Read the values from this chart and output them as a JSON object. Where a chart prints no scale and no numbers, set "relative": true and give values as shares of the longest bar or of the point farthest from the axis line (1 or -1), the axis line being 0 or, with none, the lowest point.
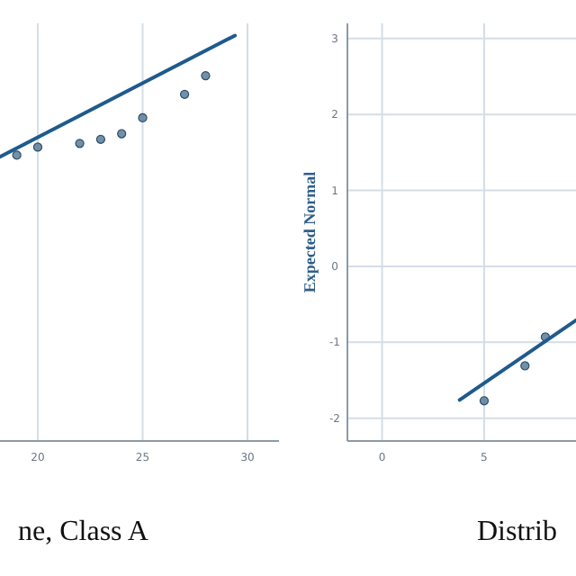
{
  "chart_data": [
    {
      "type": "scatter",
      "relative": true,
      "xlim": [
        18.2,
        31.5
      ],
      "xticks": [
        20,
        25,
        30
      ],
      "tick_labels": "x",
      "grid": "x",
      "annotations": [
        "ne, Class A"
      ],
      "series": [
        {
          "marker": "circle",
          "color": "#5b7d9a",
          "x": [
            19,
            20,
            22,
            23,
            24,
            25,
            27,
            28
          ],
          "values": [
            0.705,
            0.725,
            0.734,
            0.744,
            0.758,
            0.797,
            0.855,
            0.901
          ]
        },
        {
          "type": "line",
          "marker": "none",
          "color": "#1f5a8c",
          "x": [
            18.2,
            29.4
          ],
          "values": [
            0.701,
            1.0
          ]
        }
      ]
    },
    {
      "type": "scatter",
      "ylabel": "Expected Normal",
      "xlim": [
        -1.7,
        9.5
      ],
      "ylim": [
        -2.3,
        3.2
      ],
      "xticks": [
        0,
        5
      ],
      "yticks": [
        -2,
        -1,
        0,
        1,
        2,
        3
      ],
      "grid": true,
      "annotations": [
        "Distrib"
      ],
      "series": [
        {
          "marker": "circle",
          "color": "#5b7d9a",
          "x": [
            5,
            7,
            8
          ],
          "values": [
            -1.77,
            -1.31,
            -0.93
          ]
        },
        {
          "type": "line",
          "marker": "none",
          "color": "#1f5a8c",
          "x": [
            3.8,
            9.5
          ],
          "values": [
            -1.76,
            -0.71
          ]
        }
      ]
    }
  ]
}
